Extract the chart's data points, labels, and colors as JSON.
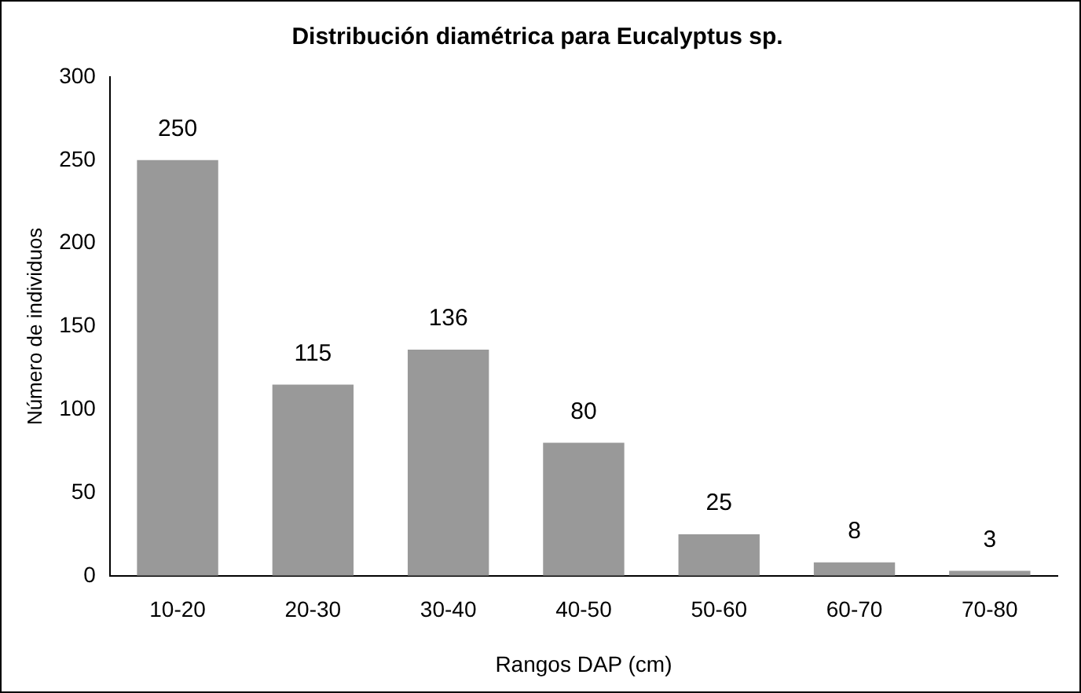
{
  "chart_data": {
    "type": "bar",
    "title": "Distribución diamétrica para Eucalyptus sp.",
    "xlabel": "Rangos DAP (cm)",
    "ylabel": "Número de individuos",
    "categories": [
      "10-20",
      "20-30",
      "30-40",
      "40-50",
      "50-60",
      "60-70",
      "70-80"
    ],
    "values": [
      250,
      115,
      136,
      80,
      25,
      8,
      3
    ],
    "color": "#999999",
    "ylim": [
      0,
      300
    ],
    "yticks": [
      0,
      50,
      100,
      150,
      200,
      250,
      300
    ],
    "grid": false,
    "legend": false,
    "data_labels": true
  }
}
